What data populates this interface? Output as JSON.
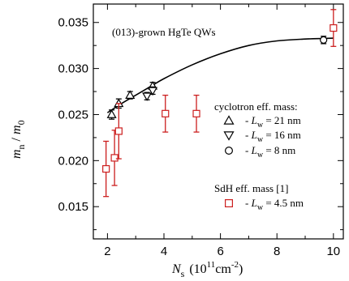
{
  "chart_data": {
    "type": "scatter",
    "title": "",
    "annotation": "(013)-grown HgTe QWs",
    "xlabel": {
      "var": "N",
      "sub": "s",
      "unit_pre": "(10",
      "unit_exp1": "11",
      "unit_mid": "cm",
      "unit_exp2": "-2",
      "unit_post": ")"
    },
    "ylabel": {
      "num": "m",
      "num_sub": "n",
      "sep": " / ",
      "den": "m",
      "den_sub": "0"
    },
    "xlim": [
      1.5,
      10.35
    ],
    "ylim": [
      0.0115,
      0.037
    ],
    "x_ticks": [
      2,
      4,
      6,
      8,
      10
    ],
    "y_ticks": [
      0.015,
      0.02,
      0.025,
      0.03,
      0.035
    ],
    "x_tick_labels": [
      "2",
      "4",
      "6",
      "8",
      "10"
    ],
    "y_tick_labels": [
      "0.015",
      "0.020",
      "0.025",
      "0.030",
      "0.035"
    ],
    "grid": false,
    "legend": {
      "placement": "right",
      "group1_title": "cyclotron eff. mass:",
      "group2_title": "SdH eff. mass [1]"
    },
    "series": [
      {
        "name": "- L_w = 21 nm",
        "label_prefix": "- ",
        "label_var": "L",
        "label_sub": "w",
        "label_value": " = 21 nm",
        "marker": "triangle-up",
        "color": "#000000",
        "points": [
          {
            "x": 2.15,
            "y": 0.025,
            "err": 0.0005
          },
          {
            "x": 2.4,
            "y": 0.0262,
            "err": 0.0005
          },
          {
            "x": 2.8,
            "y": 0.0271,
            "err": 0.0004
          },
          {
            "x": 3.6,
            "y": 0.0281,
            "err": 0.0004
          }
        ]
      },
      {
        "name": "- L_w = 16 nm",
        "label_prefix": "- ",
        "label_var": "L",
        "label_sub": "w",
        "label_value": " = 16 nm",
        "marker": "triangle-down",
        "color": "#000000",
        "points": [
          {
            "x": 3.4,
            "y": 0.027,
            "err": 0.0004
          },
          {
            "x": 3.6,
            "y": 0.0276,
            "err": 0.0004
          }
        ]
      },
      {
        "name": "- L_w = 8 nm",
        "label_prefix": "- ",
        "label_var": "L",
        "label_sub": "w",
        "label_value": " = 8 nm",
        "marker": "circle",
        "color": "#000000",
        "points": [
          {
            "x": 9.65,
            "y": 0.0331,
            "err": 0.0004
          }
        ]
      },
      {
        "name": "- L_w = 4.5 nm",
        "label_prefix": "- ",
        "label_var": "L",
        "label_sub": "w",
        "label_value": " = 4.5 nm",
        "marker": "square",
        "color": "#cc1f1f",
        "points": [
          {
            "x": 1.95,
            "y": 0.0191,
            "err": 0.003
          },
          {
            "x": 2.25,
            "y": 0.0203,
            "err": 0.003
          },
          {
            "x": 2.4,
            "y": 0.0232,
            "err": 0.003
          },
          {
            "x": 4.05,
            "y": 0.0251,
            "err": 0.002
          },
          {
            "x": 5.15,
            "y": 0.0251,
            "err": 0.002
          },
          {
            "x": 10.0,
            "y": 0.0344,
            "err": 0.002
          }
        ]
      }
    ],
    "fit_curve": {
      "color": "#000000",
      "points": [
        [
          2.0,
          0.0252
        ],
        [
          2.5,
          0.0262
        ],
        [
          3.0,
          0.0271
        ],
        [
          3.5,
          0.028
        ],
        [
          4.0,
          0.0289
        ],
        [
          5.0,
          0.0304
        ],
        [
          6.0,
          0.0316
        ],
        [
          7.0,
          0.0325
        ],
        [
          8.0,
          0.033
        ],
        [
          9.0,
          0.0332
        ],
        [
          10.0,
          0.0333
        ]
      ]
    }
  }
}
